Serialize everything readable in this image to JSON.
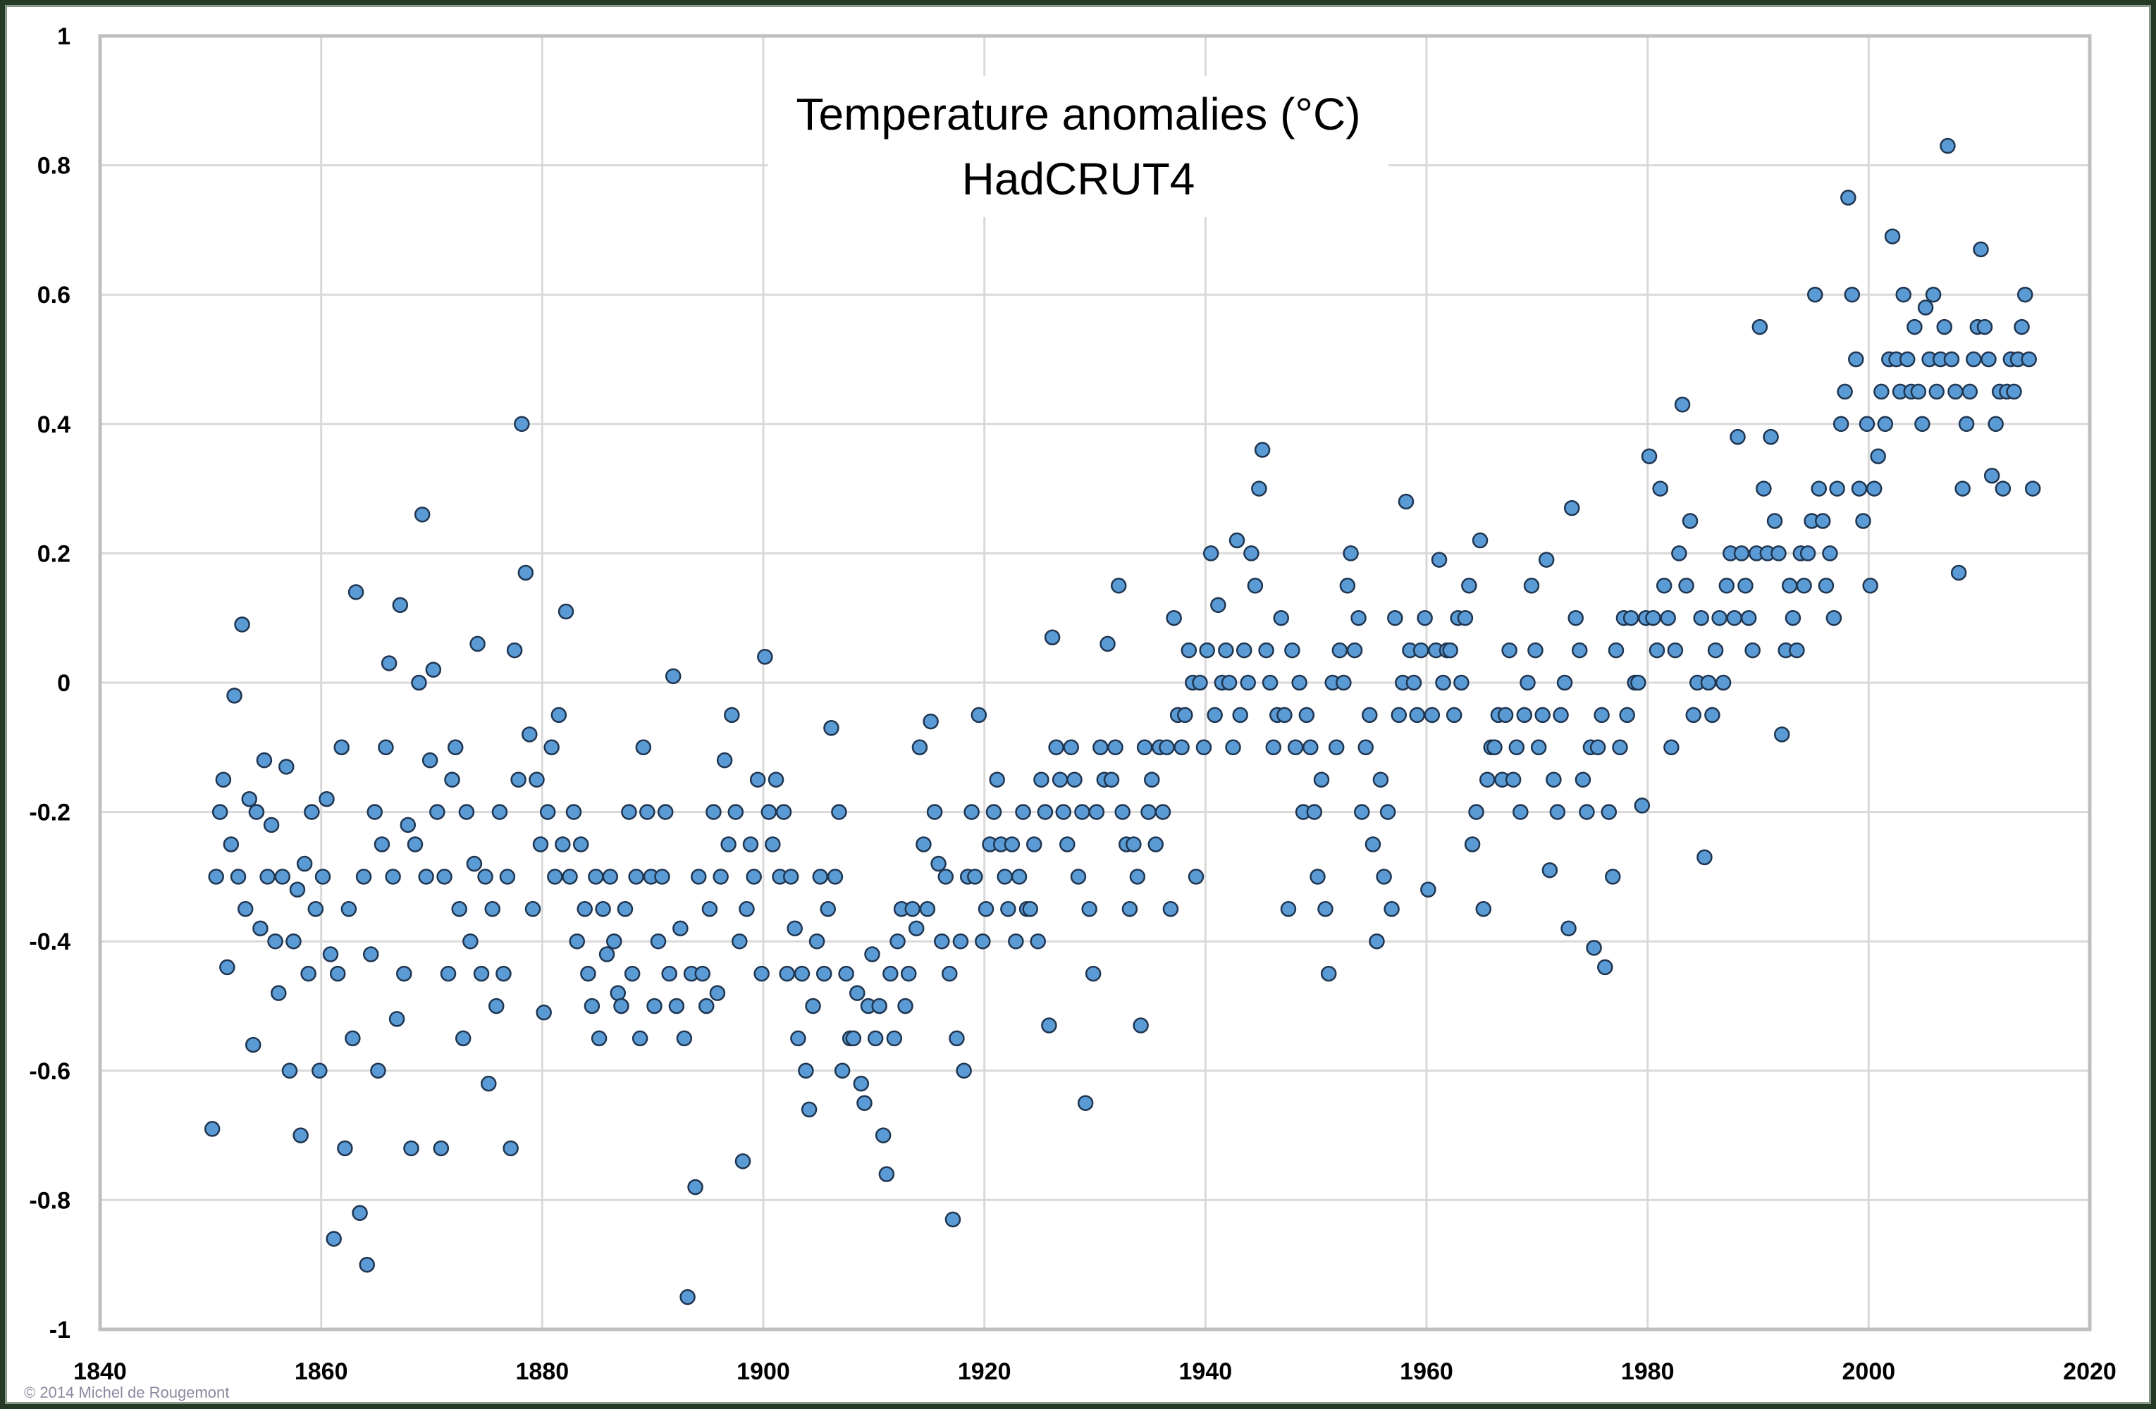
{
  "chart_data": {
    "type": "scatter",
    "title": "Temperature anomalies (°C)",
    "subtitle": "HadCRUT4",
    "xlabel": "",
    "ylabel": "",
    "xlim": [
      1840,
      2020
    ],
    "ylim": [
      -1,
      1
    ],
    "x_ticks": [
      1840,
      1860,
      1880,
      1900,
      1920,
      1940,
      1960,
      1980,
      2000,
      2020
    ],
    "y_ticks": [
      -1,
      -0.8,
      -0.6,
      -0.4,
      -0.2,
      0,
      0.2,
      0.4,
      0.6,
      0.8,
      1
    ],
    "y_tick_labels": [
      "-1",
      "-0.8",
      "-0.6",
      "-0.4",
      "-0.2",
      "0",
      "0.2",
      "0.4",
      "0.6",
      "0.8",
      "1"
    ],
    "grid": true,
    "legend": "none",
    "marker_color": "#5b9bd5",
    "marker_edge": "#1f3550",
    "points_note": "rows: [year, value, value, value] sampled within year",
    "points": [
      [
        1850,
        -0.69,
        -0.3,
        -0.2
      ],
      [
        1851,
        -0.15,
        -0.44,
        -0.25
      ],
      [
        1852,
        -0.02,
        -0.3,
        0.09
      ],
      [
        1853,
        -0.35,
        -0.18,
        -0.56
      ],
      [
        1854,
        -0.2,
        -0.38,
        -0.12
      ],
      [
        1855,
        -0.3,
        -0.22,
        -0.4
      ],
      [
        1856,
        -0.48,
        -0.3,
        -0.13
      ],
      [
        1857,
        -0.6,
        -0.4,
        -0.32
      ],
      [
        1858,
        -0.7,
        -0.28,
        -0.45
      ],
      [
        1859,
        -0.2,
        -0.35,
        -0.6
      ],
      [
        1860,
        -0.3,
        -0.18,
        -0.42
      ],
      [
        1861,
        -0.86,
        -0.45,
        -0.1
      ],
      [
        1862,
        -0.72,
        -0.35,
        -0.55
      ],
      [
        1863,
        0.14,
        -0.82,
        -0.3
      ],
      [
        1864,
        -0.9,
        -0.42,
        -0.2
      ],
      [
        1865,
        -0.6,
        -0.25,
        -0.1
      ],
      [
        1866,
        0.03,
        -0.3,
        -0.52
      ],
      [
        1867,
        0.12,
        -0.45,
        -0.22
      ],
      [
        1868,
        -0.72,
        -0.25,
        0.0
      ],
      [
        1869,
        0.26,
        -0.3,
        -0.12
      ],
      [
        1870,
        0.02,
        -0.2,
        -0.72
      ],
      [
        1871,
        -0.3,
        -0.45,
        -0.15
      ],
      [
        1872,
        -0.1,
        -0.35,
        -0.55
      ],
      [
        1873,
        -0.2,
        -0.4,
        -0.28
      ],
      [
        1874,
        0.06,
        -0.45,
        -0.3
      ],
      [
        1875,
        -0.62,
        -0.35,
        -0.5
      ],
      [
        1876,
        -0.2,
        -0.45,
        -0.3
      ],
      [
        1877,
        -0.72,
        0.05,
        -0.15
      ],
      [
        1878,
        0.4,
        0.17,
        -0.08
      ],
      [
        1879,
        -0.35,
        -0.15,
        -0.25
      ],
      [
        1880,
        -0.51,
        -0.2,
        -0.1
      ],
      [
        1881,
        -0.3,
        -0.05,
        -0.25
      ],
      [
        1882,
        0.11,
        -0.3,
        -0.2
      ],
      [
        1883,
        -0.4,
        -0.25,
        -0.35
      ],
      [
        1884,
        -0.45,
        -0.5,
        -0.3
      ],
      [
        1885,
        -0.55,
        -0.35,
        -0.42
      ],
      [
        1886,
        -0.3,
        -0.4,
        -0.48
      ],
      [
        1887,
        -0.5,
        -0.35,
        -0.2
      ],
      [
        1888,
        -0.45,
        -0.3,
        -0.55
      ],
      [
        1889,
        -0.1,
        -0.2,
        -0.3
      ],
      [
        1890,
        -0.5,
        -0.4,
        -0.3
      ],
      [
        1891,
        -0.2,
        -0.45,
        0.01
      ],
      [
        1892,
        -0.5,
        -0.38,
        -0.55
      ],
      [
        1893,
        -0.95,
        -0.45,
        -0.78
      ],
      [
        1894,
        -0.3,
        -0.45,
        -0.5
      ],
      [
        1895,
        -0.35,
        -0.2,
        -0.48
      ],
      [
        1896,
        -0.3,
        -0.12,
        -0.25
      ],
      [
        1897,
        -0.05,
        -0.2,
        -0.4
      ],
      [
        1898,
        -0.74,
        -0.35,
        -0.25
      ],
      [
        1899,
        -0.3,
        -0.15,
        -0.45
      ],
      [
        1900,
        0.04,
        -0.2,
        -0.25
      ],
      [
        1901,
        -0.15,
        -0.3,
        -0.2
      ],
      [
        1902,
        -0.45,
        -0.3,
        -0.38
      ],
      [
        1903,
        -0.55,
        -0.45,
        -0.6
      ],
      [
        1904,
        -0.66,
        -0.5,
        -0.4
      ],
      [
        1905,
        -0.3,
        -0.45,
        -0.35
      ],
      [
        1906,
        -0.07,
        -0.3,
        -0.2
      ],
      [
        1907,
        -0.6,
        -0.45,
        -0.55
      ],
      [
        1908,
        -0.55,
        -0.48,
        -0.62
      ],
      [
        1909,
        -0.65,
        -0.5,
        -0.42
      ],
      [
        1910,
        -0.55,
        -0.5,
        -0.7
      ],
      [
        1911,
        -0.76,
        -0.45,
        -0.55
      ],
      [
        1912,
        -0.4,
        -0.35,
        -0.5
      ],
      [
        1913,
        -0.45,
        -0.35,
        -0.38
      ],
      [
        1914,
        -0.1,
        -0.25,
        -0.35
      ],
      [
        1915,
        -0.06,
        -0.2,
        -0.28
      ],
      [
        1916,
        -0.4,
        -0.3,
        -0.45
      ],
      [
        1917,
        -0.83,
        -0.55,
        -0.4
      ],
      [
        1918,
        -0.6,
        -0.3,
        -0.2
      ],
      [
        1919,
        -0.3,
        -0.05,
        -0.4
      ],
      [
        1920,
        -0.35,
        -0.25,
        -0.2
      ],
      [
        1921,
        -0.15,
        -0.25,
        -0.3
      ],
      [
        1922,
        -0.35,
        -0.25,
        -0.4
      ],
      [
        1923,
        -0.3,
        -0.2,
        -0.35
      ],
      [
        1924,
        -0.35,
        -0.25,
        -0.4
      ],
      [
        1925,
        -0.15,
        -0.2,
        -0.53
      ],
      [
        1926,
        0.07,
        -0.1,
        -0.15
      ],
      [
        1927,
        -0.2,
        -0.25,
        -0.1
      ],
      [
        1928,
        -0.15,
        -0.3,
        -0.2
      ],
      [
        1929,
        -0.65,
        -0.35,
        -0.45
      ],
      [
        1930,
        -0.2,
        -0.1,
        -0.15
      ],
      [
        1931,
        0.06,
        -0.15,
        -0.1
      ],
      [
        1932,
        0.15,
        -0.2,
        -0.25
      ],
      [
        1933,
        -0.35,
        -0.25,
        -0.3
      ],
      [
        1934,
        -0.53,
        -0.1,
        -0.2
      ],
      [
        1935,
        -0.15,
        -0.25,
        -0.1
      ],
      [
        1936,
        -0.2,
        -0.1,
        -0.35
      ],
      [
        1937,
        0.1,
        -0.05,
        -0.1
      ],
      [
        1938,
        -0.05,
        0.05,
        0.0
      ],
      [
        1939,
        -0.3,
        0.0,
        -0.1
      ],
      [
        1940,
        0.05,
        0.2,
        -0.05
      ],
      [
        1941,
        0.12,
        0.0,
        0.05
      ],
      [
        1942,
        0.0,
        -0.1,
        0.22
      ],
      [
        1943,
        -0.05,
        0.05,
        0.0
      ],
      [
        1944,
        0.2,
        0.15,
        0.3
      ],
      [
        1945,
        0.36,
        0.05,
        0.0
      ],
      [
        1946,
        -0.1,
        -0.05,
        0.1
      ],
      [
        1947,
        -0.05,
        -0.35,
        0.05
      ],
      [
        1948,
        -0.1,
        0.0,
        -0.2
      ],
      [
        1949,
        -0.05,
        -0.1,
        -0.2
      ],
      [
        1950,
        -0.3,
        -0.15,
        -0.35
      ],
      [
        1951,
        -0.45,
        0.0,
        -0.1
      ],
      [
        1952,
        0.05,
        0.0,
        0.15
      ],
      [
        1953,
        0.2,
        0.05,
        0.1
      ],
      [
        1954,
        -0.2,
        -0.1,
        -0.05
      ],
      [
        1955,
        -0.25,
        -0.4,
        -0.15
      ],
      [
        1956,
        -0.3,
        -0.2,
        -0.35
      ],
      [
        1957,
        0.1,
        -0.05,
        0.0
      ],
      [
        1958,
        0.28,
        0.05,
        0.0
      ],
      [
        1959,
        -0.05,
        0.05,
        0.1
      ],
      [
        1960,
        -0.32,
        -0.05,
        0.05
      ],
      [
        1961,
        0.19,
        0.0,
        0.05
      ],
      [
        1962,
        0.05,
        -0.05,
        0.1
      ],
      [
        1963,
        0.0,
        0.1,
        0.15
      ],
      [
        1964,
        -0.25,
        -0.2,
        0.22
      ],
      [
        1965,
        -0.35,
        -0.15,
        -0.1
      ],
      [
        1966,
        -0.1,
        -0.05,
        -0.15
      ],
      [
        1967,
        -0.05,
        0.05,
        -0.15
      ],
      [
        1968,
        -0.1,
        -0.2,
        -0.05
      ],
      [
        1969,
        0.0,
        0.15,
        0.05
      ],
      [
        1970,
        -0.1,
        -0.05,
        0.19
      ],
      [
        1971,
        -0.29,
        -0.15,
        -0.2
      ],
      [
        1972,
        -0.05,
        0.0,
        -0.38
      ],
      [
        1973,
        0.27,
        0.1,
        0.05
      ],
      [
        1974,
        -0.15,
        -0.2,
        -0.1
      ],
      [
        1975,
        -0.41,
        -0.1,
        -0.05
      ],
      [
        1976,
        -0.44,
        -0.2,
        -0.3
      ],
      [
        1977,
        0.05,
        -0.1,
        0.1
      ],
      [
        1978,
        -0.05,
        0.1,
        0.0
      ],
      [
        1979,
        0.0,
        -0.19,
        0.1
      ],
      [
        1980,
        0.35,
        0.1,
        0.05
      ],
      [
        1981,
        0.3,
        0.15,
        0.1
      ],
      [
        1982,
        -0.1,
        0.05,
        0.2
      ],
      [
        1983,
        0.43,
        0.15,
        0.25
      ],
      [
        1984,
        -0.05,
        0.0,
        0.1
      ],
      [
        1985,
        -0.27,
        0.0,
        -0.05
      ],
      [
        1986,
        0.05,
        0.1,
        0.0
      ],
      [
        1987,
        0.15,
        0.2,
        0.1
      ],
      [
        1988,
        0.38,
        0.2,
        0.15
      ],
      [
        1989,
        0.1,
        0.05,
        0.2
      ],
      [
        1990,
        0.55,
        0.3,
        0.2
      ],
      [
        1991,
        0.38,
        0.25,
        0.2
      ],
      [
        1992,
        -0.08,
        0.05,
        0.15
      ],
      [
        1993,
        0.1,
        0.05,
        0.2
      ],
      [
        1994,
        0.15,
        0.2,
        0.25
      ],
      [
        1995,
        0.6,
        0.3,
        0.25
      ],
      [
        1996,
        0.15,
        0.2,
        0.1
      ],
      [
        1997,
        0.3,
        0.4,
        0.45
      ],
      [
        1998,
        0.75,
        0.6,
        0.5
      ],
      [
        1999,
        0.3,
        0.25,
        0.4
      ],
      [
        2000,
        0.15,
        0.3,
        0.35
      ],
      [
        2001,
        0.45,
        0.4,
        0.5
      ],
      [
        2002,
        0.69,
        0.5,
        0.45
      ],
      [
        2003,
        0.6,
        0.5,
        0.45
      ],
      [
        2004,
        0.55,
        0.45,
        0.4
      ],
      [
        2005,
        0.58,
        0.5,
        0.6
      ],
      [
        2006,
        0.45,
        0.5,
        0.55
      ],
      [
        2007,
        0.83,
        0.5,
        0.45
      ],
      [
        2008,
        0.17,
        0.3,
        0.4
      ],
      [
        2009,
        0.45,
        0.5,
        0.55
      ],
      [
        2010,
        0.67,
        0.55,
        0.5
      ],
      [
        2011,
        0.32,
        0.4,
        0.45
      ],
      [
        2012,
        0.3,
        0.45,
        0.5
      ],
      [
        2013,
        0.45,
        0.5,
        0.55
      ],
      [
        2014,
        0.6,
        0.5,
        0.3
      ]
    ]
  },
  "copyright": "© 2014 Michel de Rougemont"
}
